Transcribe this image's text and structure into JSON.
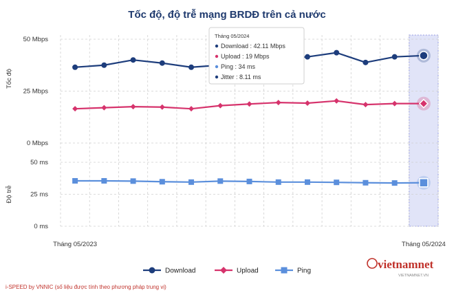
{
  "chart_data": {
    "type": "line",
    "title": "Tốc độ, độ trễ mạng BRDĐ trên cả nước",
    "x_start_label": "Tháng 05/2023",
    "x_end_label": "Tháng 05/2024",
    "colors": {
      "download": "#1d3d7c",
      "upload": "#d6336c",
      "ping": "#5b8fdc",
      "highlight": "#c9cdf2"
    },
    "speed_panel": {
      "ylabel": "Tốc độ",
      "ylim": [
        0,
        50
      ],
      "ticks": [
        "0 Mbps",
        "25 Mbps",
        "50 Mbps"
      ],
      "tick_values": [
        0,
        25,
        50
      ]
    },
    "latency_panel": {
      "ylabel": "Độ trễ",
      "ylim": [
        0,
        50
      ],
      "ticks": [
        "0 ms",
        "25 ms",
        "50 ms"
      ],
      "tick_values": [
        0,
        25,
        50
      ]
    },
    "series": [
      {
        "name": "Download",
        "panel": "speed",
        "marker": "circle",
        "values": [
          36.5,
          37.5,
          40,
          38.5,
          36.5,
          37.5,
          39.5,
          40.5,
          41.5,
          43.5,
          38.8,
          41.5,
          42.11
        ]
      },
      {
        "name": "Upload",
        "panel": "speed",
        "marker": "diamond",
        "values": [
          16.5,
          17,
          17.5,
          17.3,
          16.5,
          18,
          18.8,
          19.5,
          19.2,
          20.3,
          18.5,
          19,
          19
        ]
      },
      {
        "name": "Ping",
        "panel": "latency",
        "marker": "square",
        "values": [
          35.5,
          35.5,
          35.3,
          34.8,
          34.5,
          35.3,
          35,
          34.5,
          34.5,
          34.3,
          34,
          33.8,
          34
        ]
      }
    ],
    "tooltip": {
      "title": "Tháng 05/2024",
      "lines": [
        {
          "series": "Download",
          "text": "Download : 42.11 Mbps"
        },
        {
          "series": "Upload",
          "text": "Upload : 19 Mbps"
        },
        {
          "series": "Ping",
          "text": "Ping : 34 ms"
        },
        {
          "series": "Jitter",
          "text": "Jitter : 8.11 ms",
          "color": "#1d3d7c"
        }
      ]
    },
    "legend_placement": "bottom-center",
    "grid": true
  },
  "footnote": "i-SPEED by VNNIC (số liệu được tính theo phương pháp trung vị)",
  "logo": {
    "text": "vietnamnet",
    "subtext": "VIETNAMNET.VN"
  }
}
